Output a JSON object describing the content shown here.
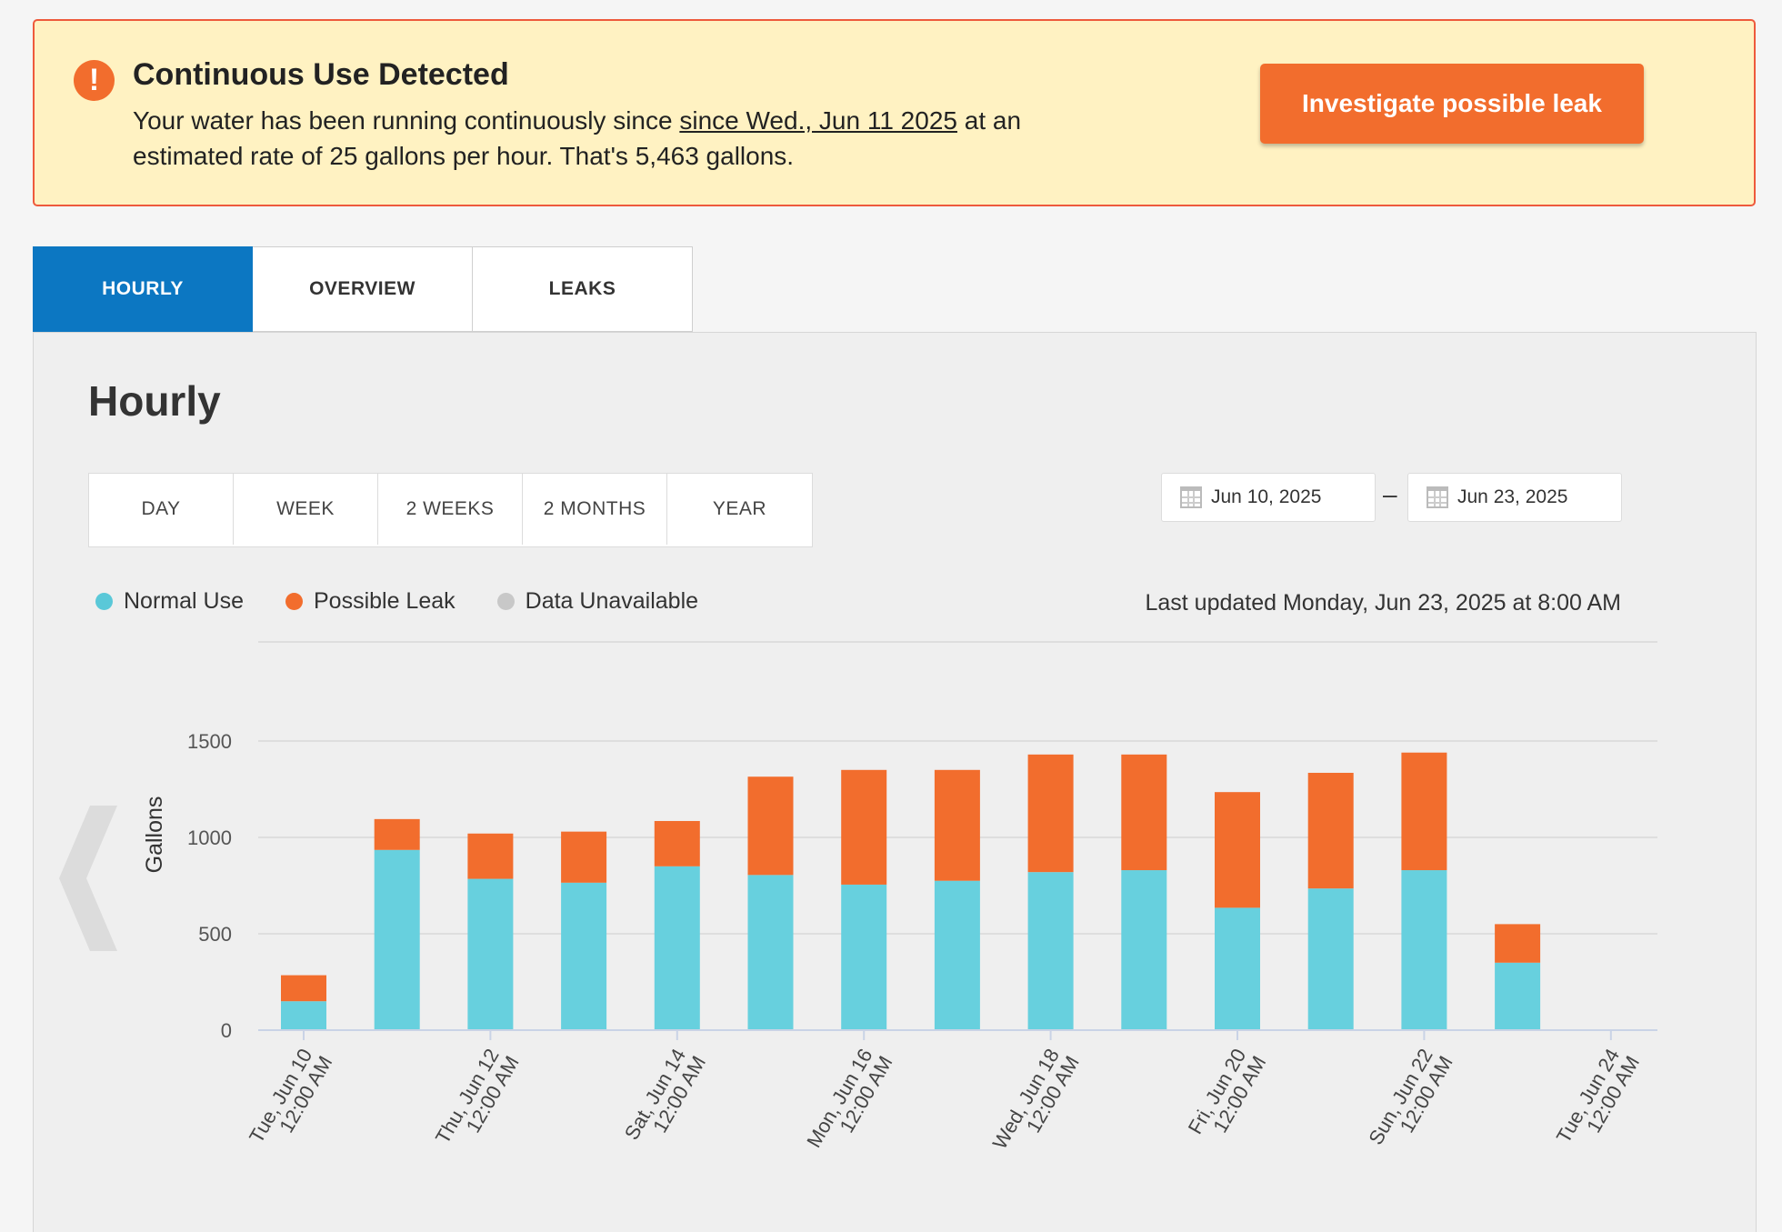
{
  "alert": {
    "title": "Continuous Use Detected",
    "icon": "exclamation-icon",
    "message_prefix": "Your water has been running continuously since ",
    "link_text": "since Wed., Jun 11 2025",
    "message_suffix": " at an estimated rate of 25 gallons per hour. That's 5,463 gallons.",
    "button": "Investigate possible leak"
  },
  "tabs": [
    {
      "label": "HOURLY",
      "active": true
    },
    {
      "label": "OVERVIEW",
      "active": false
    },
    {
      "label": "LEAKS",
      "active": false
    }
  ],
  "panel": {
    "title": "Hourly",
    "ranges": [
      "DAY",
      "WEEK",
      "2 WEEKS",
      "2 MONTHS",
      "YEAR"
    ],
    "date_start": "Jun 10, 2025",
    "date_separator": "–",
    "date_end": "Jun 23, 2025",
    "legend": [
      {
        "label": "Normal Use",
        "color": "#5ac8d8"
      },
      {
        "label": "Possible Leak",
        "color": "#f26d2d"
      },
      {
        "label": "Data Unavailable",
        "color": "#c8c8c8"
      }
    ],
    "last_updated": "Last updated Monday, Jun 23, 2025 at 8:00 AM"
  },
  "colors": {
    "normal": "#67d0de",
    "leak": "#f26d2d",
    "accent": "#0c77c2"
  },
  "chart_data": {
    "type": "bar",
    "stacked": true,
    "ylabel": "Gallons",
    "yticks": [
      0,
      500,
      1000,
      1500
    ],
    "ylim": [
      0,
      1500
    ],
    "categories": [
      "Jun 10",
      "Jun 11",
      "Jun 12",
      "Jun 13",
      "Jun 14",
      "Jun 15",
      "Jun 16",
      "Jun 17",
      "Jun 18",
      "Jun 19",
      "Jun 20",
      "Jun 21",
      "Jun 22",
      "Jun 23"
    ],
    "series": [
      {
        "name": "Normal Use",
        "values": [
          150,
          935,
          785,
          765,
          850,
          805,
          755,
          775,
          820,
          830,
          635,
          735,
          830,
          350
        ]
      },
      {
        "name": "Possible Leak",
        "values": [
          135,
          160,
          235,
          265,
          235,
          510,
          595,
          575,
          610,
          600,
          600,
          600,
          610,
          200
        ]
      }
    ],
    "xtick_labels": [
      [
        "Tue, Jun 10",
        "12:00 AM"
      ],
      [
        "Thu, Jun 12",
        "12:00 AM"
      ],
      [
        "Sat, Jun 14",
        "12:00 AM"
      ],
      [
        "Mon, Jun 16",
        "12:00 AM"
      ],
      [
        "Wed, Jun 18",
        "12:00 AM"
      ],
      [
        "Fri, Jun 20",
        "12:00 AM"
      ],
      [
        "Sun, Jun 22",
        "12:00 AM"
      ],
      [
        "Tue, Jun 24",
        "12:00 AM"
      ]
    ]
  }
}
